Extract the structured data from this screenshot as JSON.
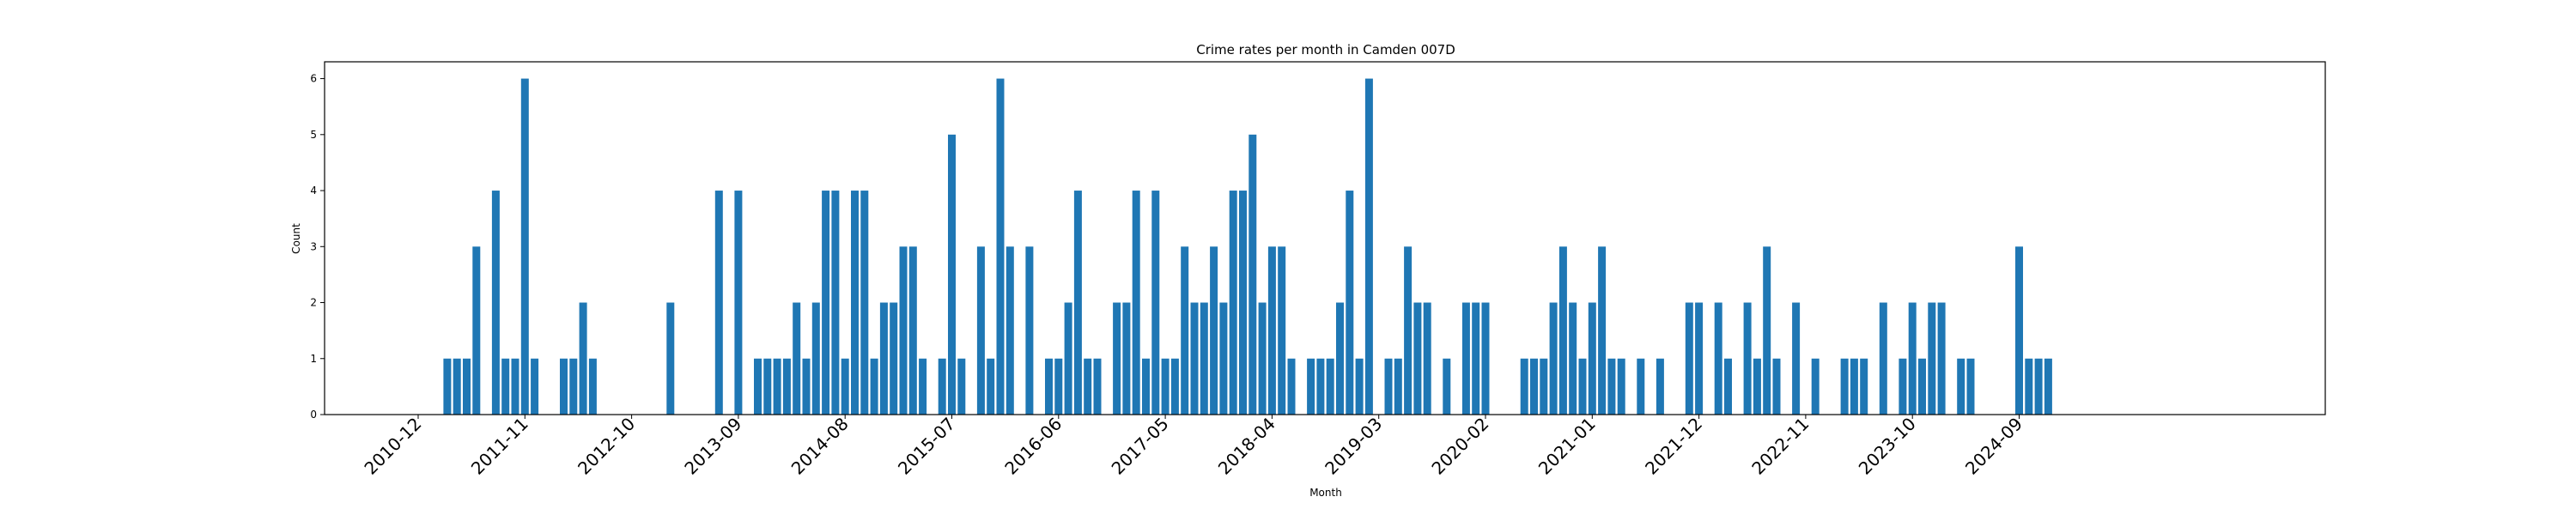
{
  "chart_data": {
    "type": "bar",
    "title": "Crime rates per month in Camden 007D",
    "xlabel": "Month",
    "ylabel": "Count",
    "ylim": [
      0,
      6.3
    ],
    "yticks": [
      0,
      1,
      2,
      3,
      4,
      5,
      6
    ],
    "xtick_labels": [
      "2010-12",
      "2011-11",
      "2012-10",
      "2013-09",
      "2014-08",
      "2015-07",
      "2016-06",
      "2017-05",
      "2018-04",
      "2019-03",
      "2020-02",
      "2021-01",
      "2021-12",
      "2022-11",
      "2023-10",
      "2024-09"
    ],
    "grid": false,
    "bar_color": "#1f77b4",
    "categories": [
      "2011-03",
      "2011-04",
      "2011-05",
      "2011-06",
      "2011-08",
      "2011-09",
      "2011-10",
      "2011-11",
      "2011-12",
      "2012-03",
      "2012-04",
      "2012-05",
      "2012-06",
      "2013-02",
      "2013-07",
      "2013-09",
      "2013-11",
      "2013-12",
      "2014-01",
      "2014-02",
      "2014-03",
      "2014-04",
      "2014-05",
      "2014-06",
      "2014-07",
      "2014-08",
      "2014-09",
      "2014-10",
      "2014-11",
      "2014-12",
      "2015-01",
      "2015-02",
      "2015-03",
      "2015-04",
      "2015-06",
      "2015-07",
      "2015-08",
      "2015-10",
      "2015-11",
      "2015-12",
      "2016-01",
      "2016-03",
      "2016-05",
      "2016-06",
      "2016-07",
      "2016-08",
      "2016-09",
      "2016-10",
      "2016-12",
      "2017-01",
      "2017-02",
      "2017-03",
      "2017-04",
      "2017-05",
      "2017-06",
      "2017-07",
      "2017-08",
      "2017-09",
      "2017-10",
      "2017-11",
      "2017-12",
      "2018-01",
      "2018-02",
      "2018-03",
      "2018-04",
      "2018-05",
      "2018-06",
      "2018-08",
      "2018-09",
      "2018-10",
      "2018-11",
      "2018-12",
      "2019-01",
      "2019-02",
      "2019-04",
      "2019-05",
      "2019-06",
      "2019-07",
      "2019-08",
      "2019-10",
      "2019-12",
      "2020-01",
      "2020-02",
      "2020-06",
      "2020-07",
      "2020-08",
      "2020-09",
      "2020-10",
      "2020-11",
      "2020-12",
      "2021-01",
      "2021-02",
      "2021-03",
      "2021-04",
      "2021-06",
      "2021-08",
      "2021-11",
      "2021-12",
      "2022-02",
      "2022-03",
      "2022-05",
      "2022-06",
      "2022-07",
      "2022-08",
      "2022-10",
      "2022-12",
      "2023-03",
      "2023-04",
      "2023-05",
      "2023-07",
      "2023-09",
      "2023-10",
      "2023-11",
      "2023-12",
      "2024-01",
      "2024-03",
      "2024-04",
      "2024-09",
      "2024-10",
      "2024-11",
      "2024-12"
    ],
    "values": [
      1,
      1,
      1,
      3,
      4,
      1,
      1,
      6,
      1,
      1,
      1,
      2,
      1,
      2,
      4,
      4,
      1,
      1,
      1,
      1,
      2,
      1,
      2,
      4,
      4,
      1,
      4,
      4,
      1,
      2,
      2,
      3,
      3,
      1,
      1,
      5,
      1,
      3,
      1,
      6,
      3,
      3,
      1,
      1,
      2,
      4,
      1,
      1,
      2,
      2,
      4,
      1,
      4,
      1,
      1,
      3,
      2,
      2,
      3,
      2,
      4,
      4,
      5,
      2,
      3,
      3,
      1,
      1,
      1,
      1,
      2,
      4,
      1,
      6,
      1,
      1,
      3,
      2,
      2,
      1,
      2,
      2,
      2,
      1,
      1,
      1,
      2,
      3,
      2,
      1,
      2,
      3,
      1,
      1,
      1,
      1,
      2,
      2,
      2,
      1,
      2,
      1,
      3,
      1,
      2,
      1,
      1,
      1,
      1,
      2,
      1,
      2,
      1,
      2,
      2,
      1,
      1,
      3,
      1,
      1,
      1
    ]
  }
}
